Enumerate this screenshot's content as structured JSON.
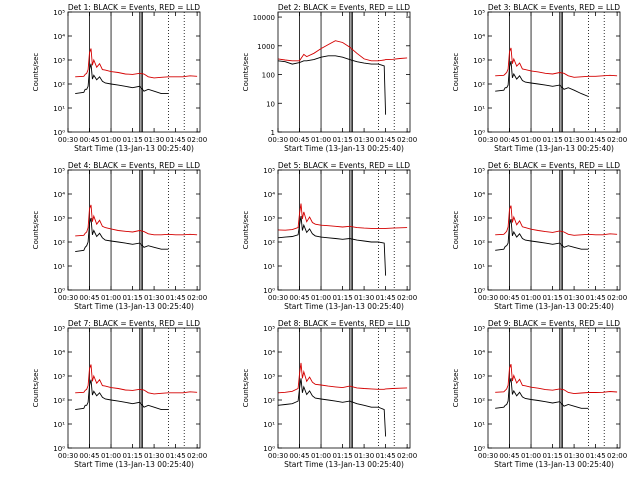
{
  "colors": {
    "events": "#000000",
    "lld": "#d40000",
    "axis": "#000000"
  },
  "common": {
    "xlabel": "Start Time (13-Jan-13 00:25:40)",
    "ylabel": "Counts/sec",
    "xticks": [
      "00:30",
      "00:45",
      "01:00",
      "01:15",
      "01:30",
      "01:45",
      "02:00"
    ],
    "xlim_minutes": [
      30,
      122
    ]
  },
  "chart_data": [
    {
      "type": "line",
      "title": "Det 1: BLACK = Events, RED = LLD",
      "yscale": "log",
      "ylim": [
        1,
        100000
      ],
      "ytick_labels": [
        "10⁰",
        "10¹",
        "10²",
        "10³",
        "10⁴",
        "10⁵"
      ],
      "ytick_values": [
        1,
        10,
        100,
        1000,
        10000,
        100000
      ],
      "vlines_solid": [
        45,
        60,
        80,
        81,
        82
      ],
      "vlines_dotted": [
        100,
        111
      ],
      "x": [
        35,
        41,
        42,
        43,
        44,
        45,
        46,
        47,
        48,
        50,
        52,
        54,
        56,
        60,
        65,
        70,
        75,
        80,
        83,
        86,
        90,
        95,
        100,
        105,
        110,
        115,
        120
      ],
      "series": [
        {
          "name": "Events",
          "values": [
            40,
            45,
            60,
            60,
            80,
            400,
            700,
            160,
            230,
            150,
            200,
            130,
            110,
            100,
            90,
            80,
            70,
            80,
            50,
            60,
            50,
            40,
            40,
            null,
            null,
            null,
            null
          ]
        },
        {
          "name": "LLD",
          "values": [
            200,
            210,
            250,
            280,
            400,
            2000,
            3000,
            600,
            1000,
            500,
            700,
            400,
            380,
            330,
            300,
            260,
            250,
            280,
            260,
            200,
            180,
            190,
            200,
            200,
            200,
            220,
            210
          ]
        }
      ]
    },
    {
      "type": "line",
      "title": "Det 2: BLACK = Events, RED = LLD",
      "yscale": "log",
      "ylim": [
        1,
        15000
      ],
      "ytick_labels": [
        "1",
        "10",
        "100",
        "1000",
        "10000"
      ],
      "ytick_values": [
        1,
        10,
        100,
        1000,
        10000
      ],
      "vlines_solid": [
        45,
        60,
        80,
        81,
        82
      ],
      "vlines_dotted": [
        100,
        111
      ],
      "x": [
        30,
        35,
        40,
        45,
        48,
        50,
        55,
        60,
        65,
        70,
        75,
        80,
        85,
        90,
        95,
        100,
        104,
        105,
        110,
        115,
        120
      ],
      "series": [
        {
          "name": "Events",
          "values": [
            300,
            280,
            230,
            260,
            300,
            300,
            330,
            400,
            450,
            450,
            400,
            330,
            280,
            250,
            230,
            230,
            200,
            4,
            null,
            null,
            null
          ]
        },
        {
          "name": "LLD",
          "values": [
            350,
            320,
            300,
            300,
            500,
            420,
            550,
            800,
            1100,
            1500,
            1300,
            900,
            550,
            350,
            300,
            300,
            320,
            330,
            340,
            360,
            380
          ]
        }
      ]
    },
    {
      "type": "line",
      "title": "Det 3: BLACK = Events, RED = LLD",
      "yscale": "log",
      "ylim": [
        1,
        100000
      ],
      "ytick_labels": [
        "10⁰",
        "10¹",
        "10²",
        "10³",
        "10⁴",
        "10⁵"
      ],
      "ytick_values": [
        1,
        10,
        100,
        1000,
        10000,
        100000
      ],
      "vlines_solid": [
        45,
        60,
        80,
        81,
        82
      ],
      "vlines_dotted": [
        100,
        111
      ],
      "x": [
        35,
        41,
        42,
        43,
        44,
        45,
        46,
        47,
        48,
        50,
        52,
        54,
        56,
        60,
        65,
        70,
        75,
        80,
        83,
        86,
        90,
        95,
        100,
        105,
        110,
        115,
        120
      ],
      "series": [
        {
          "name": "Events",
          "values": [
            50,
            55,
            70,
            70,
            90,
            500,
            900,
            180,
            260,
            160,
            220,
            140,
            120,
            110,
            100,
            90,
            80,
            90,
            60,
            70,
            55,
            40,
            30,
            null,
            null,
            null,
            null
          ]
        },
        {
          "name": "LLD",
          "values": [
            220,
            230,
            260,
            300,
            420,
            2200,
            3200,
            700,
            1100,
            550,
            750,
            420,
            400,
            350,
            320,
            280,
            260,
            300,
            280,
            220,
            190,
            200,
            210,
            210,
            220,
            230,
            220
          ]
        }
      ]
    },
    {
      "type": "line",
      "title": "Det 4: BLACK = Events, RED = LLD",
      "yscale": "log",
      "ylim": [
        1,
        100000
      ],
      "ytick_labels": [
        "10⁰",
        "10¹",
        "10²",
        "10³",
        "10⁴",
        "10⁵"
      ],
      "ytick_values": [
        1,
        10,
        100,
        1000,
        10000,
        100000
      ],
      "vlines_solid": [
        45,
        60,
        80,
        81,
        82
      ],
      "vlines_dotted": [
        100,
        111
      ],
      "x": [
        35,
        41,
        42,
        43,
        44,
        45,
        46,
        47,
        48,
        50,
        52,
        54,
        56,
        60,
        65,
        70,
        75,
        80,
        83,
        86,
        90,
        95,
        100,
        105,
        110,
        115,
        120
      ],
      "series": [
        {
          "name": "Events",
          "values": [
            40,
            45,
            60,
            70,
            100,
            600,
            1000,
            200,
            300,
            170,
            230,
            150,
            120,
            110,
            100,
            90,
            80,
            90,
            60,
            70,
            60,
            50,
            50,
            null,
            null,
            null,
            null
          ]
        },
        {
          "name": "LLD",
          "values": [
            180,
            190,
            230,
            260,
            400,
            2400,
            3500,
            700,
            1200,
            550,
            800,
            450,
            400,
            350,
            300,
            280,
            260,
            300,
            270,
            220,
            200,
            200,
            210,
            200,
            200,
            210,
            200
          ]
        }
      ]
    },
    {
      "type": "line",
      "title": "Det 5: BLACK = Events, RED = LLD",
      "yscale": "log",
      "ylim": [
        1,
        100000
      ],
      "ytick_labels": [
        "10⁰",
        "10¹",
        "10²",
        "10³",
        "10⁴",
        "10⁵"
      ],
      "ytick_values": [
        1,
        10,
        100,
        1000,
        10000,
        100000
      ],
      "vlines_solid": [
        45,
        60,
        80,
        81,
        82
      ],
      "vlines_dotted": [
        100,
        111
      ],
      "x": [
        30,
        35,
        40,
        44,
        45,
        46,
        47,
        48,
        50,
        52,
        54,
        56,
        60,
        65,
        70,
        75,
        80,
        85,
        90,
        95,
        100,
        104,
        105,
        110,
        115,
        120
      ],
      "series": [
        {
          "name": "Events",
          "values": [
            150,
            160,
            170,
            200,
            500,
            1200,
            300,
            500,
            250,
            350,
            220,
            180,
            160,
            150,
            140,
            130,
            140,
            120,
            110,
            100,
            100,
            90,
            4,
            null,
            null,
            null
          ]
        },
        {
          "name": "LLD",
          "values": [
            320,
            310,
            330,
            400,
            1500,
            4000,
            900,
            1800,
            700,
            1100,
            650,
            550,
            500,
            480,
            450,
            420,
            450,
            400,
            380,
            370,
            360,
            360,
            370,
            380,
            390,
            400
          ]
        }
      ]
    },
    {
      "type": "line",
      "title": "Det 6: BLACK = Events, RED = LLD",
      "yscale": "log",
      "ylim": [
        1,
        100000
      ],
      "ytick_labels": [
        "10⁰",
        "10¹",
        "10²",
        "10³",
        "10⁴",
        "10⁵"
      ],
      "ytick_values": [
        1,
        10,
        100,
        1000,
        10000,
        100000
      ],
      "vlines_solid": [
        45,
        60,
        80,
        81,
        82
      ],
      "vlines_dotted": [
        100,
        111
      ],
      "x": [
        35,
        41,
        42,
        43,
        44,
        45,
        46,
        47,
        48,
        50,
        52,
        54,
        56,
        60,
        65,
        70,
        75,
        80,
        83,
        86,
        90,
        95,
        100,
        105,
        110,
        115,
        120
      ],
      "series": [
        {
          "name": "Events",
          "values": [
            45,
            50,
            65,
            70,
            90,
            550,
            900,
            180,
            260,
            160,
            220,
            140,
            120,
            110,
            100,
            90,
            80,
            90,
            60,
            70,
            60,
            50,
            50,
            null,
            null,
            null,
            null
          ]
        },
        {
          "name": "LLD",
          "values": [
            200,
            210,
            240,
            280,
            420,
            2300,
            3300,
            650,
            1100,
            520,
            760,
            430,
            400,
            340,
            300,
            270,
            250,
            290,
            260,
            210,
            190,
            200,
            210,
            200,
            200,
            220,
            210
          ]
        }
      ]
    },
    {
      "type": "line",
      "title": "Det 7: BLACK = Events, RED = LLD",
      "yscale": "log",
      "ylim": [
        1,
        100000
      ],
      "ytick_labels": [
        "10⁰",
        "10¹",
        "10²",
        "10³",
        "10⁴",
        "10⁵"
      ],
      "ytick_values": [
        1,
        10,
        100,
        1000,
        10000,
        100000
      ],
      "vlines_solid": [
        45,
        60,
        80,
        81,
        82
      ],
      "vlines_dotted": [
        100,
        111
      ],
      "x": [
        35,
        41,
        42,
        43,
        44,
        45,
        46,
        47,
        48,
        50,
        52,
        54,
        56,
        60,
        65,
        70,
        75,
        80,
        83,
        86,
        90,
        95,
        100,
        105,
        110,
        115,
        120
      ],
      "series": [
        {
          "name": "Events",
          "values": [
            40,
            45,
            60,
            60,
            80,
            400,
            700,
            160,
            230,
            150,
            200,
            130,
            110,
            100,
            90,
            80,
            70,
            80,
            50,
            60,
            50,
            40,
            40,
            null,
            null,
            null,
            null
          ]
        },
        {
          "name": "LLD",
          "values": [
            200,
            210,
            250,
            280,
            400,
            2000,
            3000,
            600,
            1000,
            500,
            700,
            400,
            380,
            330,
            300,
            260,
            250,
            280,
            260,
            200,
            180,
            190,
            200,
            200,
            200,
            220,
            210
          ]
        }
      ]
    },
    {
      "type": "line",
      "title": "Det 8: BLACK = Events, RED = LLD",
      "yscale": "log",
      "ylim": [
        1,
        100000
      ],
      "ytick_labels": [
        "10⁰",
        "10¹",
        "10²",
        "10³",
        "10⁴",
        "10⁵"
      ],
      "ytick_values": [
        1,
        10,
        100,
        1000,
        10000,
        100000
      ],
      "vlines_solid": [
        45,
        60,
        80,
        81,
        82
      ],
      "vlines_dotted": [
        100,
        111
      ],
      "x": [
        30,
        35,
        40,
        44,
        45,
        46,
        47,
        48,
        50,
        52,
        54,
        56,
        60,
        65,
        70,
        75,
        80,
        85,
        90,
        95,
        100,
        104,
        105,
        110,
        115,
        120
      ],
      "series": [
        {
          "name": "Events",
          "values": [
            60,
            65,
            70,
            90,
            300,
            800,
            200,
            350,
            170,
            240,
            150,
            120,
            110,
            100,
            90,
            80,
            90,
            70,
            60,
            50,
            50,
            40,
            3,
            null,
            null,
            null
          ]
        },
        {
          "name": "LLD",
          "values": [
            200,
            210,
            230,
            300,
            1200,
            3500,
            800,
            1500,
            600,
            900,
            550,
            450,
            420,
            380,
            350,
            330,
            380,
            320,
            300,
            290,
            280,
            280,
            290,
            300,
            310,
            320
          ]
        }
      ]
    },
    {
      "type": "line",
      "title": "Det 9: BLACK = Events, RED = LLD",
      "yscale": "log",
      "ylim": [
        1,
        100000
      ],
      "ytick_labels": [
        "10⁰",
        "10¹",
        "10²",
        "10³",
        "10⁴",
        "10⁵"
      ],
      "ytick_values": [
        1,
        10,
        100,
        1000,
        10000,
        100000
      ],
      "vlines_solid": [
        45,
        60,
        80,
        81,
        82
      ],
      "vlines_dotted": [
        100,
        111
      ],
      "x": [
        35,
        41,
        42,
        43,
        44,
        45,
        46,
        47,
        48,
        50,
        52,
        54,
        56,
        60,
        65,
        70,
        75,
        80,
        83,
        86,
        90,
        95,
        100,
        105,
        110,
        115,
        120
      ],
      "series": [
        {
          "name": "Events",
          "values": [
            45,
            50,
            60,
            65,
            90,
            500,
            800,
            170,
            240,
            150,
            210,
            135,
            115,
            105,
            95,
            85,
            75,
            85,
            55,
            65,
            55,
            45,
            45,
            null,
            null,
            null,
            null
          ]
        },
        {
          "name": "LLD",
          "values": [
            210,
            220,
            250,
            290,
            410,
            2100,
            3100,
            620,
            1050,
            510,
            730,
            410,
            390,
            340,
            310,
            270,
            255,
            290,
            265,
            205,
            185,
            195,
            205,
            205,
            210,
            225,
            215
          ]
        }
      ]
    }
  ]
}
